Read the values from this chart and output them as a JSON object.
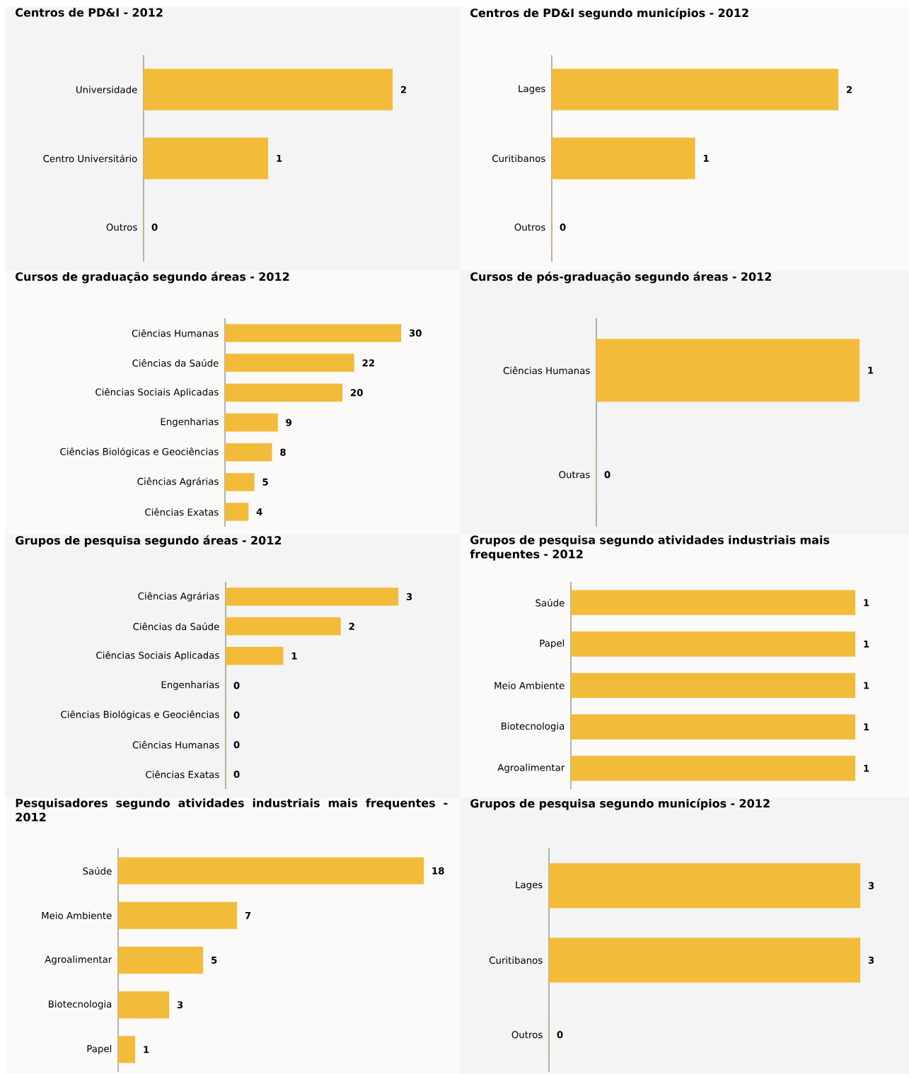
{
  "chart_data": [
    {
      "type": "bar",
      "orientation": "horizontal",
      "title": "Centros de PD&I - 2012",
      "categories": [
        "Universidade",
        "Centro Universitário",
        "Outros"
      ],
      "values": [
        2,
        1,
        0
      ],
      "color": "#f3bb3a",
      "data_labels": true,
      "tick_labels": "y"
    },
    {
      "type": "bar",
      "orientation": "horizontal",
      "title": "Centros de PD&I segundo municípios - 2012",
      "categories": [
        "Lages",
        "Curitibanos",
        "Outros"
      ],
      "values": [
        2,
        1,
        0
      ],
      "color": "#f3bb3a",
      "data_labels": true,
      "tick_labels": "y"
    },
    {
      "type": "bar",
      "orientation": "horizontal",
      "title": "Cursos de graduação segundo áreas - 2012",
      "categories": [
        "Ciências Humanas",
        "Ciências da Saúde",
        "Ciências Sociais Aplicadas",
        "Engenharias",
        "Ciências Biológicas e Geociências",
        "Ciências Agrárias",
        "Ciências Exatas"
      ],
      "values": [
        30,
        22,
        20,
        9,
        8,
        5,
        4
      ],
      "color": "#f3bb3a",
      "data_labels": true,
      "tick_labels": "y"
    },
    {
      "type": "bar",
      "orientation": "horizontal",
      "title": "Cursos de pós-graduação segundo áreas - 2012",
      "categories": [
        "Ciências Humanas",
        "Outras"
      ],
      "values": [
        1,
        0
      ],
      "color": "#f3bb3a",
      "data_labels": true,
      "tick_labels": "y"
    },
    {
      "type": "bar",
      "orientation": "horizontal",
      "title": "Grupos de pesquisa segundo áreas - 2012",
      "categories": [
        "Ciências Agrárias",
        "Ciências da Saúde",
        "Ciências Sociais Aplicadas",
        "Engenharias",
        "Ciências Biológicas e Geociências",
        "Ciências Humanas",
        "Ciências Exatas"
      ],
      "values": [
        3,
        2,
        1,
        0,
        0,
        0,
        0
      ],
      "color": "#f3bb3a",
      "data_labels": true,
      "tick_labels": "y"
    },
    {
      "type": "bar",
      "orientation": "horizontal",
      "title": "Grupos de pesquisa segundo atividades industriais mais frequentes - 2012",
      "categories": [
        "Saúde",
        "Papel",
        "Meio Ambiente",
        "Biotecnologia",
        "Agroalimentar"
      ],
      "values": [
        1,
        1,
        1,
        1,
        1
      ],
      "color": "#f3bb3a",
      "data_labels": true,
      "tick_labels": "y"
    },
    {
      "type": "bar",
      "orientation": "horizontal",
      "title": "Pesquisadores segundo atividades industriais mais frequentes - 2012",
      "categories": [
        "Saúde",
        "Meio Ambiente",
        "Agroalimentar",
        "Biotecnologia",
        "Papel"
      ],
      "values": [
        18,
        7,
        5,
        3,
        1
      ],
      "color": "#f3bb3a",
      "data_labels": true,
      "tick_labels": "y"
    },
    {
      "type": "bar",
      "orientation": "horizontal",
      "title": "Grupos de pesquisa segundo municípios - 2012",
      "categories": [
        "Lages",
        "Curitibanos",
        "Outros"
      ],
      "values": [
        3,
        3,
        0
      ],
      "color": "#f3bb3a",
      "data_labels": true,
      "tick_labels": "y"
    }
  ]
}
